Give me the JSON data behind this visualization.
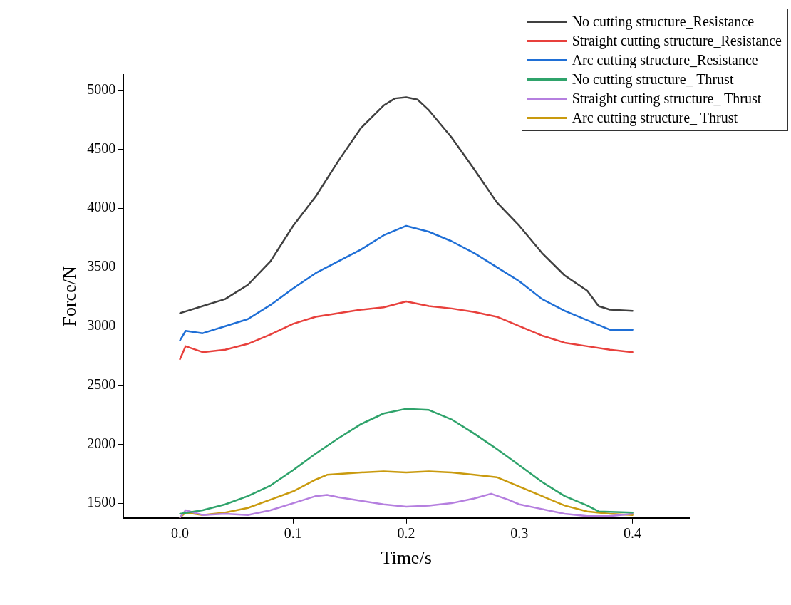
{
  "chart_data": {
    "type": "line",
    "xlabel": "Time/s",
    "ylabel": "Force/N",
    "xlim": [
      -0.05,
      0.45
    ],
    "xticks": [
      {
        "value": 0,
        "label": "0.0"
      },
      0.1,
      0.2,
      0.3,
      0.4
    ],
    "ylim": [
      1375,
      5130
    ],
    "yticks": [
      1500,
      2000,
      2500,
      3000,
      3500,
      4000,
      4500,
      5000
    ],
    "grid": false,
    "legend": "top right",
    "marker": "none",
    "line_style": "solid",
    "series": [
      {
        "name": "No cutting structure_Resistance",
        "color": "#404040",
        "x": [
          0,
          0.02,
          0.04,
          0.06,
          0.08,
          0.1,
          0.12,
          0.14,
          0.16,
          0.18,
          0.19,
          0.2,
          0.21,
          0.22,
          0.24,
          0.26,
          0.28,
          0.3,
          0.32,
          0.34,
          0.36,
          0.37,
          0.38,
          0.4
        ],
        "values": [
          3110,
          3170,
          3230,
          3350,
          3550,
          3850,
          4100,
          4400,
          4680,
          4870,
          4930,
          4940,
          4920,
          4830,
          4600,
          4330,
          4050,
          3850,
          3620,
          3430,
          3300,
          3170,
          3140,
          3130
        ]
      },
      {
        "name": "Straight cutting structure_Resistance",
        "color": "#e8403c",
        "x": [
          0,
          0.005,
          0.02,
          0.04,
          0.06,
          0.08,
          0.1,
          0.12,
          0.14,
          0.16,
          0.18,
          0.2,
          0.22,
          0.24,
          0.26,
          0.28,
          0.3,
          0.32,
          0.34,
          0.36,
          0.38,
          0.4
        ],
        "values": [
          2720,
          2830,
          2780,
          2800,
          2850,
          2930,
          3020,
          3080,
          3110,
          3140,
          3160,
          3210,
          3170,
          3150,
          3120,
          3080,
          3000,
          2920,
          2860,
          2830,
          2800,
          2780
        ]
      },
      {
        "name": "Arc cutting structure_Resistance",
        "color": "#1f6fd6",
        "x": [
          0,
          0.005,
          0.02,
          0.04,
          0.06,
          0.08,
          0.1,
          0.12,
          0.14,
          0.16,
          0.18,
          0.2,
          0.22,
          0.24,
          0.26,
          0.28,
          0.3,
          0.32,
          0.34,
          0.36,
          0.38,
          0.4
        ],
        "values": [
          2880,
          2960,
          2940,
          3000,
          3060,
          3180,
          3320,
          3450,
          3550,
          3650,
          3770,
          3850,
          3800,
          3720,
          3620,
          3500,
          3380,
          3230,
          3130,
          3050,
          2970,
          2970
        ]
      },
      {
        "name": "No cutting structure_ Thrust",
        "color": "#2fa36b",
        "x": [
          0,
          0.02,
          0.04,
          0.06,
          0.08,
          0.1,
          0.12,
          0.14,
          0.16,
          0.18,
          0.2,
          0.22,
          0.24,
          0.26,
          0.28,
          0.3,
          0.32,
          0.34,
          0.36,
          0.37,
          0.4
        ],
        "values": [
          1410,
          1440,
          1490,
          1560,
          1650,
          1780,
          1920,
          2050,
          2170,
          2260,
          2300,
          2290,
          2210,
          2090,
          1960,
          1820,
          1680,
          1560,
          1480,
          1430,
          1420
        ]
      },
      {
        "name": "Straight cutting structure_ Thrust",
        "color": "#b57fdf",
        "x": [
          0,
          0.005,
          0.02,
          0.04,
          0.06,
          0.08,
          0.1,
          0.12,
          0.13,
          0.14,
          0.16,
          0.18,
          0.2,
          0.22,
          0.24,
          0.26,
          0.275,
          0.29,
          0.3,
          0.32,
          0.34,
          0.36,
          0.38,
          0.4
        ],
        "values": [
          1380,
          1440,
          1400,
          1410,
          1400,
          1440,
          1500,
          1560,
          1570,
          1550,
          1520,
          1490,
          1470,
          1480,
          1500,
          1540,
          1580,
          1530,
          1490,
          1450,
          1410,
          1390,
          1390,
          1410
        ]
      },
      {
        "name": "Arc cutting structure_ Thrust",
        "color": "#c99a0e",
        "x": [
          0,
          0.005,
          0.02,
          0.04,
          0.06,
          0.08,
          0.1,
          0.12,
          0.13,
          0.16,
          0.18,
          0.2,
          0.22,
          0.24,
          0.26,
          0.28,
          0.3,
          0.32,
          0.34,
          0.36,
          0.38,
          0.4
        ],
        "values": [
          1380,
          1420,
          1400,
          1420,
          1460,
          1530,
          1600,
          1700,
          1740,
          1760,
          1770,
          1760,
          1770,
          1760,
          1740,
          1720,
          1640,
          1560,
          1480,
          1430,
          1410,
          1400
        ]
      }
    ]
  }
}
